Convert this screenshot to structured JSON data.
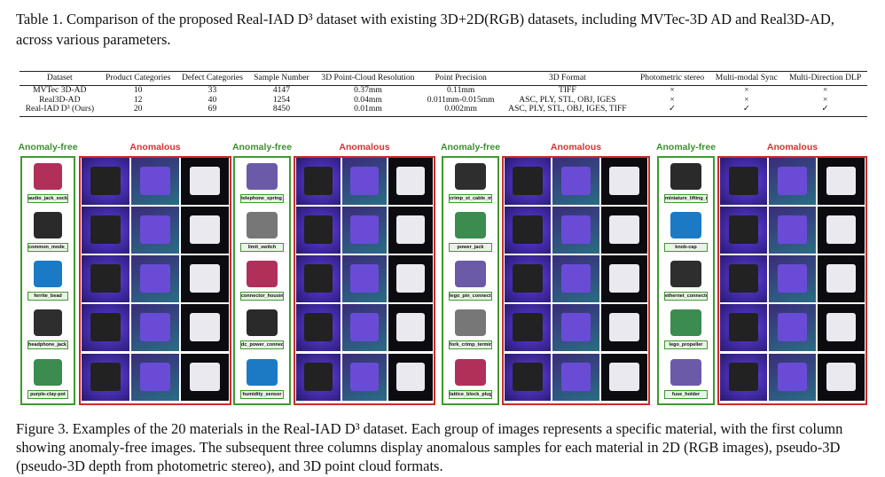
{
  "table_caption": "Table 1. Comparison of the proposed Real-IAD D³ dataset with existing 3D+2D(RGB) datasets, including MVTec-3D AD and Real3D-AD, across various parameters.",
  "table": {
    "headers": [
      "Dataset",
      "Product Categories",
      "Defect Categories",
      "Sample Number",
      "3D Point-Cloud Resolution",
      "Point Precision",
      "3D Format",
      "Photometric stereo",
      "Multi-modal Sync",
      "Multi-Direction DLP"
    ],
    "rows": [
      [
        "MVTec 3D-AD",
        "10",
        "33",
        "4147",
        "0.37mm",
        "0.11mm",
        "TIFF",
        "×",
        "×",
        "×"
      ],
      [
        "Real3D-AD",
        "12",
        "40",
        "1254",
        "0.04mm",
        "0.011mm-0.015mm",
        "ASC, PLY, STL, OBJ, IGES",
        "×",
        "×",
        "×"
      ],
      [
        "Real-IAD D³ (Ours)",
        "20",
        "69",
        "8450",
        "0.01mm",
        "0.002mm",
        "ASC, PLY, STL, OBJ, IGES, TIFF",
        "✓",
        "✓",
        "✓"
      ]
    ]
  },
  "figure": {
    "anomaly_free_label": "Anomaly-free",
    "anomalous_label": "Anomalous",
    "groups": [
      [
        "audio_jack_socket",
        "common_mode_filter",
        "ferrite_bead",
        "headphone_jack_socket",
        "purple-clay-pot"
      ],
      [
        "telephone_spring_switch",
        "limit_switch",
        "connector_housing-female",
        "dc_power_connector",
        "humidity_sensor"
      ],
      [
        "crimp_st_cable_mount_box",
        "power_jack",
        "lego_pin_connector_plate",
        "fork_crimp_terminal",
        "lattice_block_plug"
      ],
      [
        "miniature_lifting_motor",
        "knob-cap",
        "ethernet_connector",
        "lego_propeller",
        "fuse_holder"
      ]
    ]
  },
  "figure_caption": "Figure 3. Examples of the 20 materials in the Real-IAD D³ dataset. Each group of images represents a specific material, with the first column showing anomaly-free images. The subsequent three columns display anomalous samples for each material in 2D (RGB images), pseudo-3D (pseudo-3D depth from photometric stereo), and 3D point cloud formats.",
  "colors": {
    "anomaly_free": "#3c9a2e",
    "anomalous": "#cc2b2b"
  }
}
